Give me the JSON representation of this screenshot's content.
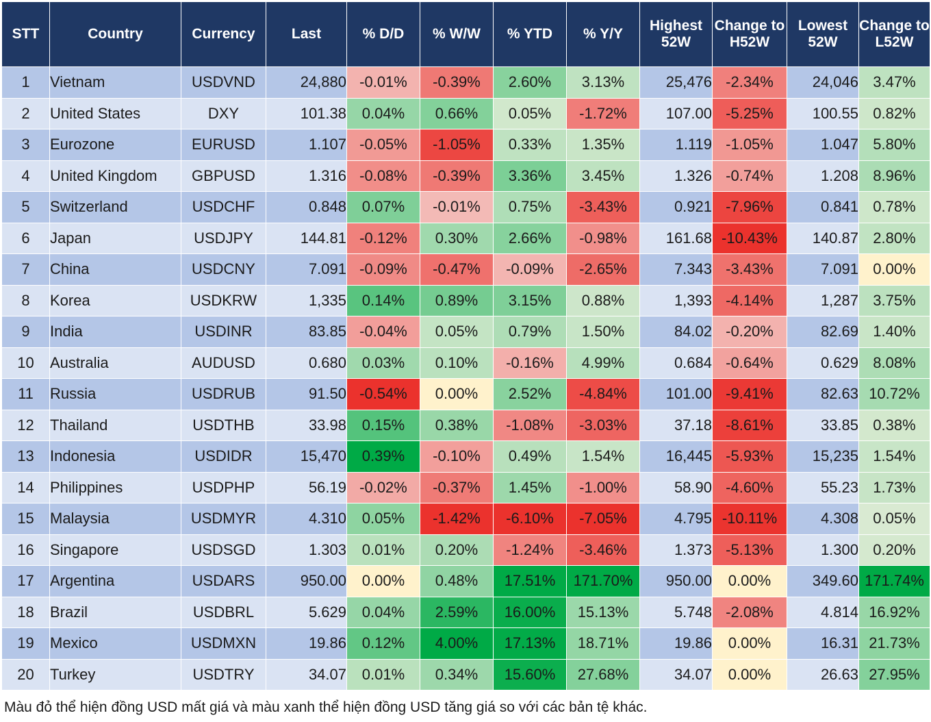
{
  "columns": {
    "stt": "STT",
    "country": "Country",
    "currency": "Currency",
    "last": "Last",
    "dd": "% D/D",
    "ww": "% W/W",
    "ytd": "% YTD",
    "yy": "% Y/Y",
    "high52": "Highest 52W",
    "chg_high": "Change to H52W",
    "low52": "Lowest 52W",
    "chg_low": "Change to L52W"
  },
  "rows": [
    {
      "stt": "1",
      "country": "Vietnam",
      "currency": "USDVND",
      "last": "24,880",
      "dd": "-0.01%",
      "ww": "-0.39%",
      "ytd": "2.60%",
      "yy": "3.13%",
      "high52": "25,476",
      "chg_high": "-2.34%",
      "low52": "24,046",
      "chg_low": "3.47%"
    },
    {
      "stt": "2",
      "country": "United States",
      "currency": "DXY",
      "last": "101.38",
      "dd": "0.04%",
      "ww": "0.66%",
      "ytd": "0.05%",
      "yy": "-1.72%",
      "high52": "107.00",
      "chg_high": "-5.25%",
      "low52": "100.55",
      "chg_low": "0.82%"
    },
    {
      "stt": "3",
      "country": "Eurozone",
      "currency": "EURUSD",
      "last": "1.107",
      "dd": "-0.05%",
      "ww": "-1.05%",
      "ytd": "0.33%",
      "yy": "1.35%",
      "high52": "1.119",
      "chg_high": "-1.05%",
      "low52": "1.047",
      "chg_low": "5.80%"
    },
    {
      "stt": "4",
      "country": "United Kingdom",
      "currency": "GBPUSD",
      "last": "1.316",
      "dd": "-0.08%",
      "ww": "-0.39%",
      "ytd": "3.36%",
      "yy": "3.45%",
      "high52": "1.326",
      "chg_high": "-0.74%",
      "low52": "1.208",
      "chg_low": "8.96%"
    },
    {
      "stt": "5",
      "country": "Switzerland",
      "currency": "USDCHF",
      "last": "0.848",
      "dd": "0.07%",
      "ww": "-0.01%",
      "ytd": "0.75%",
      "yy": "-3.43%",
      "high52": "0.921",
      "chg_high": "-7.96%",
      "low52": "0.841",
      "chg_low": "0.78%"
    },
    {
      "stt": "6",
      "country": "Japan",
      "currency": "USDJPY",
      "last": "144.81",
      "dd": "-0.12%",
      "ww": "0.30%",
      "ytd": "2.66%",
      "yy": "-0.98%",
      "high52": "161.68",
      "chg_high": "-10.43%",
      "low52": "140.87",
      "chg_low": "2.80%"
    },
    {
      "stt": "7",
      "country": "China",
      "currency": "USDCNY",
      "last": "7.091",
      "dd": "-0.09%",
      "ww": "-0.47%",
      "ytd": "-0.09%",
      "yy": "-2.65%",
      "high52": "7.343",
      "chg_high": "-3.43%",
      "low52": "7.091",
      "chg_low": "0.00%"
    },
    {
      "stt": "8",
      "country": "Korea",
      "currency": "USDKRW",
      "last": "1,335",
      "dd": "0.14%",
      "ww": "0.89%",
      "ytd": "3.15%",
      "yy": "0.88%",
      "high52": "1,393",
      "chg_high": "-4.14%",
      "low52": "1,287",
      "chg_low": "3.75%"
    },
    {
      "stt": "9",
      "country": "India",
      "currency": "USDINR",
      "last": "83.85",
      "dd": "-0.04%",
      "ww": "0.05%",
      "ytd": "0.79%",
      "yy": "1.50%",
      "high52": "84.02",
      "chg_high": "-0.20%",
      "low52": "82.69",
      "chg_low": "1.40%"
    },
    {
      "stt": "10",
      "country": "Australia",
      "currency": "AUDUSD",
      "last": "0.680",
      "dd": "0.03%",
      "ww": "0.10%",
      "ytd": "-0.16%",
      "yy": "4.99%",
      "high52": "0.684",
      "chg_high": "-0.64%",
      "low52": "0.629",
      "chg_low": "8.08%"
    },
    {
      "stt": "11",
      "country": "Russia",
      "currency": "USDRUB",
      "last": "91.50",
      "dd": "-0.54%",
      "ww": "0.00%",
      "ytd": "2.52%",
      "yy": "-4.84%",
      "high52": "101.00",
      "chg_high": "-9.41%",
      "low52": "82.63",
      "chg_low": "10.72%"
    },
    {
      "stt": "12",
      "country": "Thailand",
      "currency": "USDTHB",
      "last": "33.98",
      "dd": "0.15%",
      "ww": "0.38%",
      "ytd": "-1.08%",
      "yy": "-3.03%",
      "high52": "37.18",
      "chg_high": "-8.61%",
      "low52": "33.85",
      "chg_low": "0.38%"
    },
    {
      "stt": "13",
      "country": "Indonesia",
      "currency": "USDIDR",
      "last": "15,470",
      "dd": "0.39%",
      "ww": "-0.10%",
      "ytd": "0.49%",
      "yy": "1.54%",
      "high52": "16,445",
      "chg_high": "-5.93%",
      "low52": "15,235",
      "chg_low": "1.54%"
    },
    {
      "stt": "14",
      "country": "Philippines",
      "currency": "USDPHP",
      "last": "56.19",
      "dd": "-0.02%",
      "ww": "-0.37%",
      "ytd": "1.45%",
      "yy": "-1.00%",
      "high52": "58.90",
      "chg_high": "-4.60%",
      "low52": "55.23",
      "chg_low": "1.73%"
    },
    {
      "stt": "15",
      "country": "Malaysia",
      "currency": "USDMYR",
      "last": "4.310",
      "dd": "0.05%",
      "ww": "-1.42%",
      "ytd": "-6.10%",
      "yy": "-7.05%",
      "high52": "4.795",
      "chg_high": "-10.11%",
      "low52": "4.308",
      "chg_low": "0.05%"
    },
    {
      "stt": "16",
      "country": "Singapore",
      "currency": "USDSGD",
      "last": "1.303",
      "dd": "0.01%",
      "ww": "0.20%",
      "ytd": "-1.24%",
      "yy": "-3.46%",
      "high52": "1.373",
      "chg_high": "-5.13%",
      "low52": "1.300",
      "chg_low": "0.20%"
    },
    {
      "stt": "17",
      "country": "Argentina",
      "currency": "USDARS",
      "last": "950.00",
      "dd": "0.00%",
      "ww": "0.48%",
      "ytd": "17.51%",
      "yy": "171.70%",
      "high52": "950.00",
      "chg_high": "0.00%",
      "low52": "349.60",
      "chg_low": "171.74%"
    },
    {
      "stt": "18",
      "country": "Brazil",
      "currency": "USDBRL",
      "last": "5.629",
      "dd": "0.04%",
      "ww": "2.59%",
      "ytd": "16.00%",
      "yy": "15.13%",
      "high52": "5.748",
      "chg_high": "-2.08%",
      "low52": "4.814",
      "chg_low": "16.92%"
    },
    {
      "stt": "19",
      "country": "Mexico",
      "currency": "USDMXN",
      "last": "19.86",
      "dd": "0.12%",
      "ww": "4.00%",
      "ytd": "17.13%",
      "yy": "18.71%",
      "high52": "19.86",
      "chg_high": "0.00%",
      "low52": "16.31",
      "chg_low": "21.73%"
    },
    {
      "stt": "20",
      "country": "Turkey",
      "currency": "USDTRY",
      "last": "34.07",
      "dd": "0.01%",
      "ww": "0.34%",
      "ytd": "15.60%",
      "yy": "27.68%",
      "high52": "34.07",
      "chg_high": "0.00%",
      "low52": "26.63",
      "chg_low": "27.95%"
    }
  ],
  "note": "Màu đỏ thể hiện đồng USD mất giá và màu xanh thể hiện đồng USD tăng giá so với các bản tệ khác."
}
